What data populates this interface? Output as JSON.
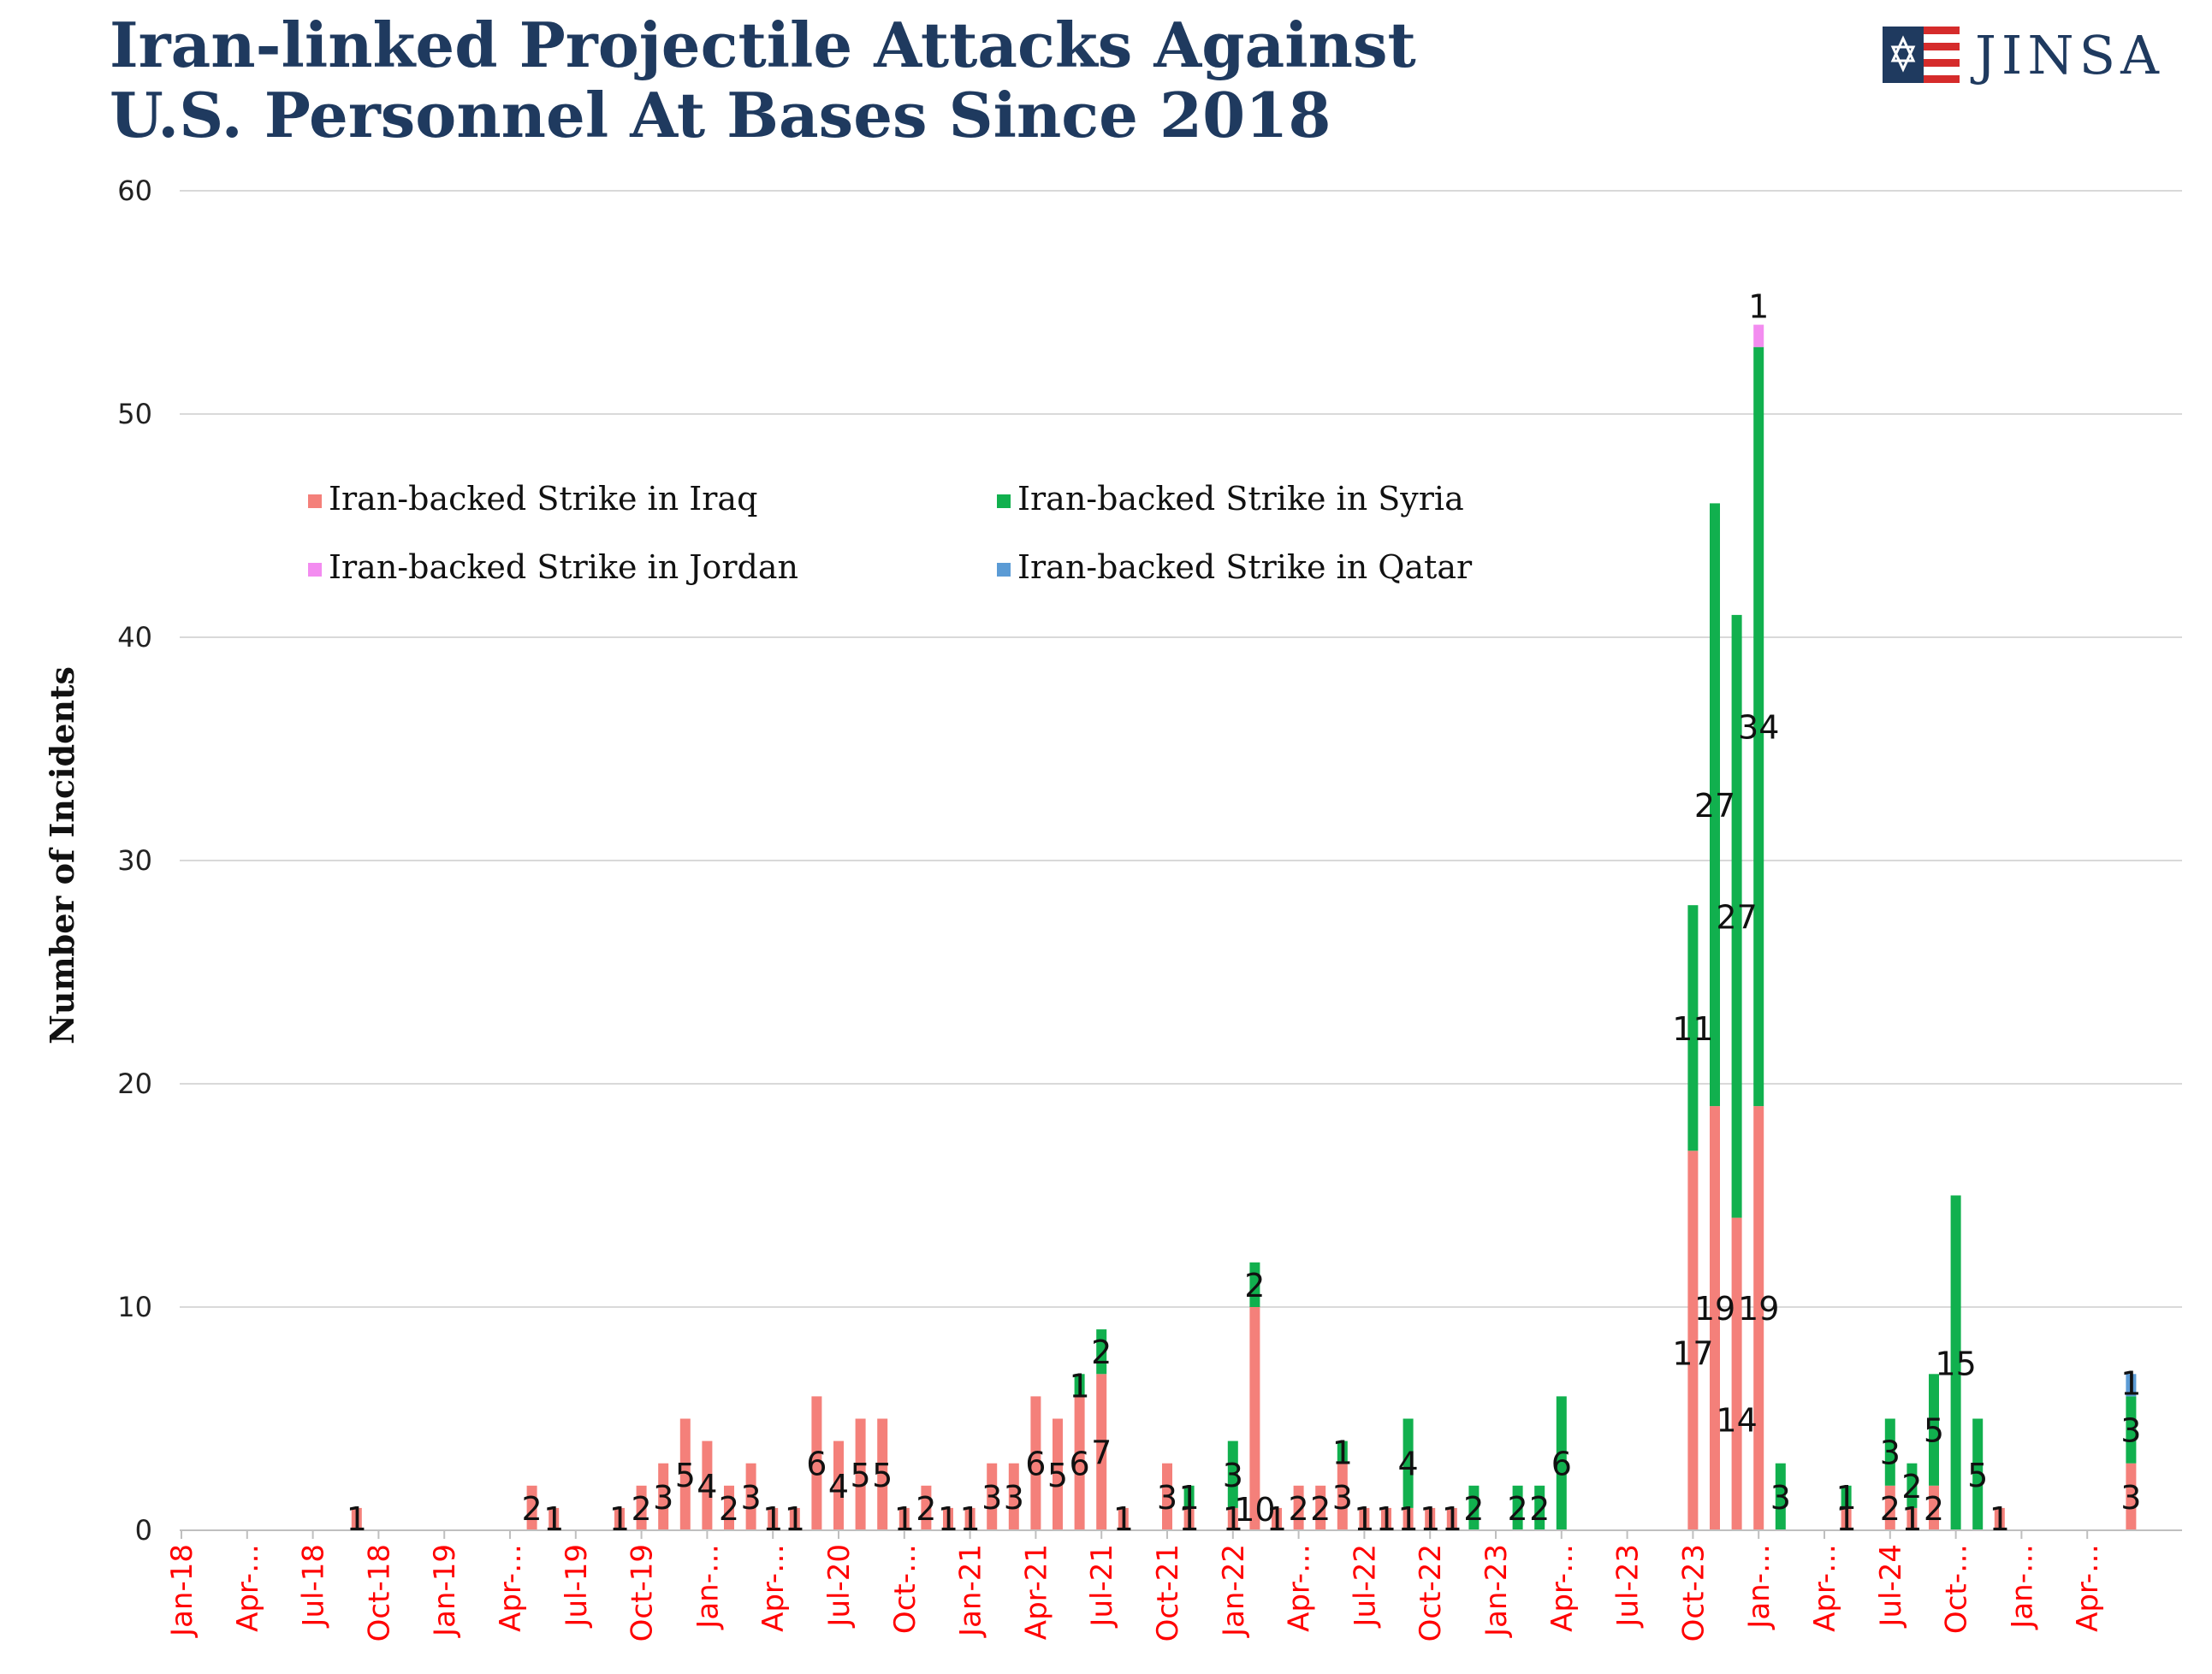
{
  "title_lines": [
    "Iran-linked Projectile Attacks Against",
    "U.S. Personnel At Bases Since 2018"
  ],
  "logo": {
    "text": "JINSA",
    "icon": "star-of-david-flag-icon"
  },
  "colors": {
    "iraq": "#f4807a",
    "syria": "#11b04e",
    "jordan": "#f38cf0",
    "qatar": "#5b9bd5",
    "axis_text": "#ff0000",
    "title": "#1f3a5f",
    "grid": "#d9d9d9"
  },
  "chart_data": {
    "type": "bar",
    "stacked": true,
    "title": "Iran-linked Projectile Attacks Against U.S. Personnel At Bases Since 2018",
    "ylabel": "Number of Incidents",
    "ylim": [
      0,
      60
    ],
    "yticks": [
      0,
      10,
      20,
      30,
      40,
      50,
      60
    ],
    "grid": true,
    "legend_position": "top-left inside",
    "xtick_labels": [
      "Jan-18",
      "Apr-…",
      "Jul-18",
      "Oct-18",
      "Jan-19",
      "Apr-…",
      "Jul-19",
      "Oct-19",
      "Jan-…",
      "Apr-…",
      "Jul-20",
      "Oct-…",
      "Jan-21",
      "Apr-21",
      "Jul-21",
      "Oct-21",
      "Jan-22",
      "Apr-…",
      "Jul-22",
      "Oct-22",
      "Jan-23",
      "Apr-…",
      "Jul-23",
      "Oct-23",
      "Jan-…",
      "Apr-…",
      "Jul-24",
      "Oct-…",
      "Jan-…",
      "Apr-…"
    ],
    "categories": [
      "Jan-18",
      "Feb-18",
      "Mar-18",
      "Apr-18",
      "May-18",
      "Jun-18",
      "Jul-18",
      "Aug-18",
      "Sep-18",
      "Oct-18",
      "Nov-18",
      "Dec-18",
      "Jan-19",
      "Feb-19",
      "Mar-19",
      "Apr-19",
      "May-19",
      "Jun-19",
      "Jul-19",
      "Aug-19",
      "Sep-19",
      "Oct-19",
      "Nov-19",
      "Dec-19",
      "Jan-20",
      "Feb-20",
      "Mar-20",
      "Apr-20",
      "May-20",
      "Jun-20",
      "Jul-20",
      "Aug-20",
      "Sep-20",
      "Oct-20",
      "Nov-20",
      "Dec-20",
      "Jan-21",
      "Feb-21",
      "Mar-21",
      "Apr-21",
      "May-21",
      "Jun-21",
      "Jul-21",
      "Aug-21",
      "Sep-21",
      "Oct-21",
      "Nov-21",
      "Dec-21",
      "Jan-22",
      "Feb-22",
      "Mar-22",
      "Apr-22",
      "May-22",
      "Jun-22",
      "Jul-22",
      "Aug-22",
      "Sep-22",
      "Oct-22",
      "Nov-22",
      "Dec-22",
      "Jan-23",
      "Feb-23",
      "Mar-23",
      "Apr-23",
      "May-23",
      "Jun-23",
      "Jul-23",
      "Aug-23",
      "Sep-23",
      "Oct-23",
      "Nov-23",
      "Dec-23",
      "Jan-24",
      "Feb-24",
      "Mar-24",
      "Apr-24",
      "May-24",
      "Jun-24",
      "Jul-24",
      "Aug-24",
      "Sep-24",
      "Oct-24",
      "Nov-24",
      "Dec-24",
      "Jan-25",
      "Feb-25",
      "Mar-25",
      "Apr-25",
      "May-25",
      "Jun-25"
    ],
    "series": [
      {
        "name": "Iran-backed Strike in Iraq",
        "color": "#f4807a",
        "values": [
          0,
          0,
          0,
          0,
          0,
          0,
          0,
          0,
          1,
          0,
          0,
          0,
          0,
          0,
          0,
          0,
          2,
          1,
          0,
          0,
          1,
          2,
          3,
          5,
          4,
          2,
          3,
          1,
          1,
          6,
          4,
          5,
          5,
          1,
          2,
          1,
          1,
          3,
          3,
          6,
          5,
          6,
          7,
          1,
          0,
          3,
          1,
          0,
          1,
          10,
          1,
          2,
          2,
          3,
          1,
          1,
          1,
          1,
          1,
          0,
          0,
          0,
          0,
          0,
          0,
          0,
          0,
          0,
          0,
          17,
          19,
          14,
          19,
          0,
          0,
          0,
          1,
          0,
          2,
          1,
          2,
          0,
          0,
          1,
          0,
          0,
          0,
          0,
          0,
          3
        ]
      },
      {
        "name": "Iran-backed Strike in Syria",
        "color": "#11b04e",
        "values": [
          0,
          0,
          0,
          0,
          0,
          0,
          0,
          0,
          0,
          0,
          0,
          0,
          0,
          0,
          0,
          0,
          0,
          0,
          0,
          0,
          0,
          0,
          0,
          0,
          0,
          0,
          0,
          0,
          0,
          0,
          0,
          0,
          0,
          0,
          0,
          0,
          0,
          0,
          0,
          0,
          0,
          1,
          2,
          0,
          0,
          0,
          1,
          0,
          3,
          2,
          0,
          0,
          0,
          1,
          0,
          0,
          4,
          0,
          0,
          2,
          0,
          2,
          2,
          6,
          0,
          0,
          0,
          0,
          0,
          11,
          27,
          27,
          34,
          3,
          0,
          0,
          1,
          0,
          3,
          2,
          5,
          15,
          5,
          0,
          0,
          0,
          0,
          0,
          0,
          3
        ]
      },
      {
        "name": "Iran-backed Strike in Jordan",
        "color": "#f38cf0",
        "values": [
          0,
          0,
          0,
          0,
          0,
          0,
          0,
          0,
          0,
          0,
          0,
          0,
          0,
          0,
          0,
          0,
          0,
          0,
          0,
          0,
          0,
          0,
          0,
          0,
          0,
          0,
          0,
          0,
          0,
          0,
          0,
          0,
          0,
          0,
          0,
          0,
          0,
          0,
          0,
          0,
          0,
          0,
          0,
          0,
          0,
          0,
          0,
          0,
          0,
          0,
          0,
          0,
          0,
          0,
          0,
          0,
          0,
          0,
          0,
          0,
          0,
          0,
          0,
          0,
          0,
          0,
          0,
          0,
          0,
          0,
          0,
          0,
          1,
          0,
          0,
          0,
          0,
          0,
          0,
          0,
          0,
          0,
          0,
          0,
          0,
          0,
          0,
          0,
          0,
          0
        ]
      },
      {
        "name": "Iran-backed Strike in Qatar",
        "color": "#5b9bd5",
        "values": [
          0,
          0,
          0,
          0,
          0,
          0,
          0,
          0,
          0,
          0,
          0,
          0,
          0,
          0,
          0,
          0,
          0,
          0,
          0,
          0,
          0,
          0,
          0,
          0,
          0,
          0,
          0,
          0,
          0,
          0,
          0,
          0,
          0,
          0,
          0,
          0,
          0,
          0,
          0,
          0,
          0,
          0,
          0,
          0,
          0,
          0,
          0,
          0,
          0,
          0,
          0,
          0,
          0,
          0,
          0,
          0,
          0,
          0,
          0,
          0,
          0,
          0,
          0,
          0,
          0,
          0,
          0,
          0,
          0,
          0,
          0,
          0,
          0,
          0,
          0,
          0,
          0,
          0,
          0,
          0,
          0,
          0,
          0,
          0,
          0,
          0,
          0,
          0,
          0,
          1
        ]
      }
    ]
  }
}
